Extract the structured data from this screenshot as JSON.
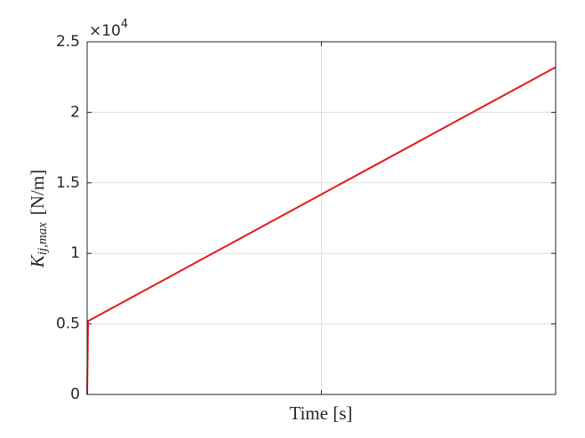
{
  "chart_data": {
    "type": "line",
    "xlabel": "Time [s]",
    "ylabel": {
      "symbol": "K",
      "subscript": "ij,max",
      "unit": "[N/m]"
    },
    "y_multiplier": {
      "base": "×10",
      "exponent": "4"
    },
    "x": [
      0,
      0.002,
      1
    ],
    "series": [
      {
        "color": "#e41a1c",
        "values": [
          0,
          0.52,
          2.32
        ]
      }
    ],
    "xlim": [
      0,
      1
    ],
    "xticks": [
      0.5
    ],
    "ylim": [
      0,
      2.5
    ],
    "yticks": [
      0,
      0.5,
      1,
      1.5,
      2,
      2.5
    ],
    "grid": true
  }
}
